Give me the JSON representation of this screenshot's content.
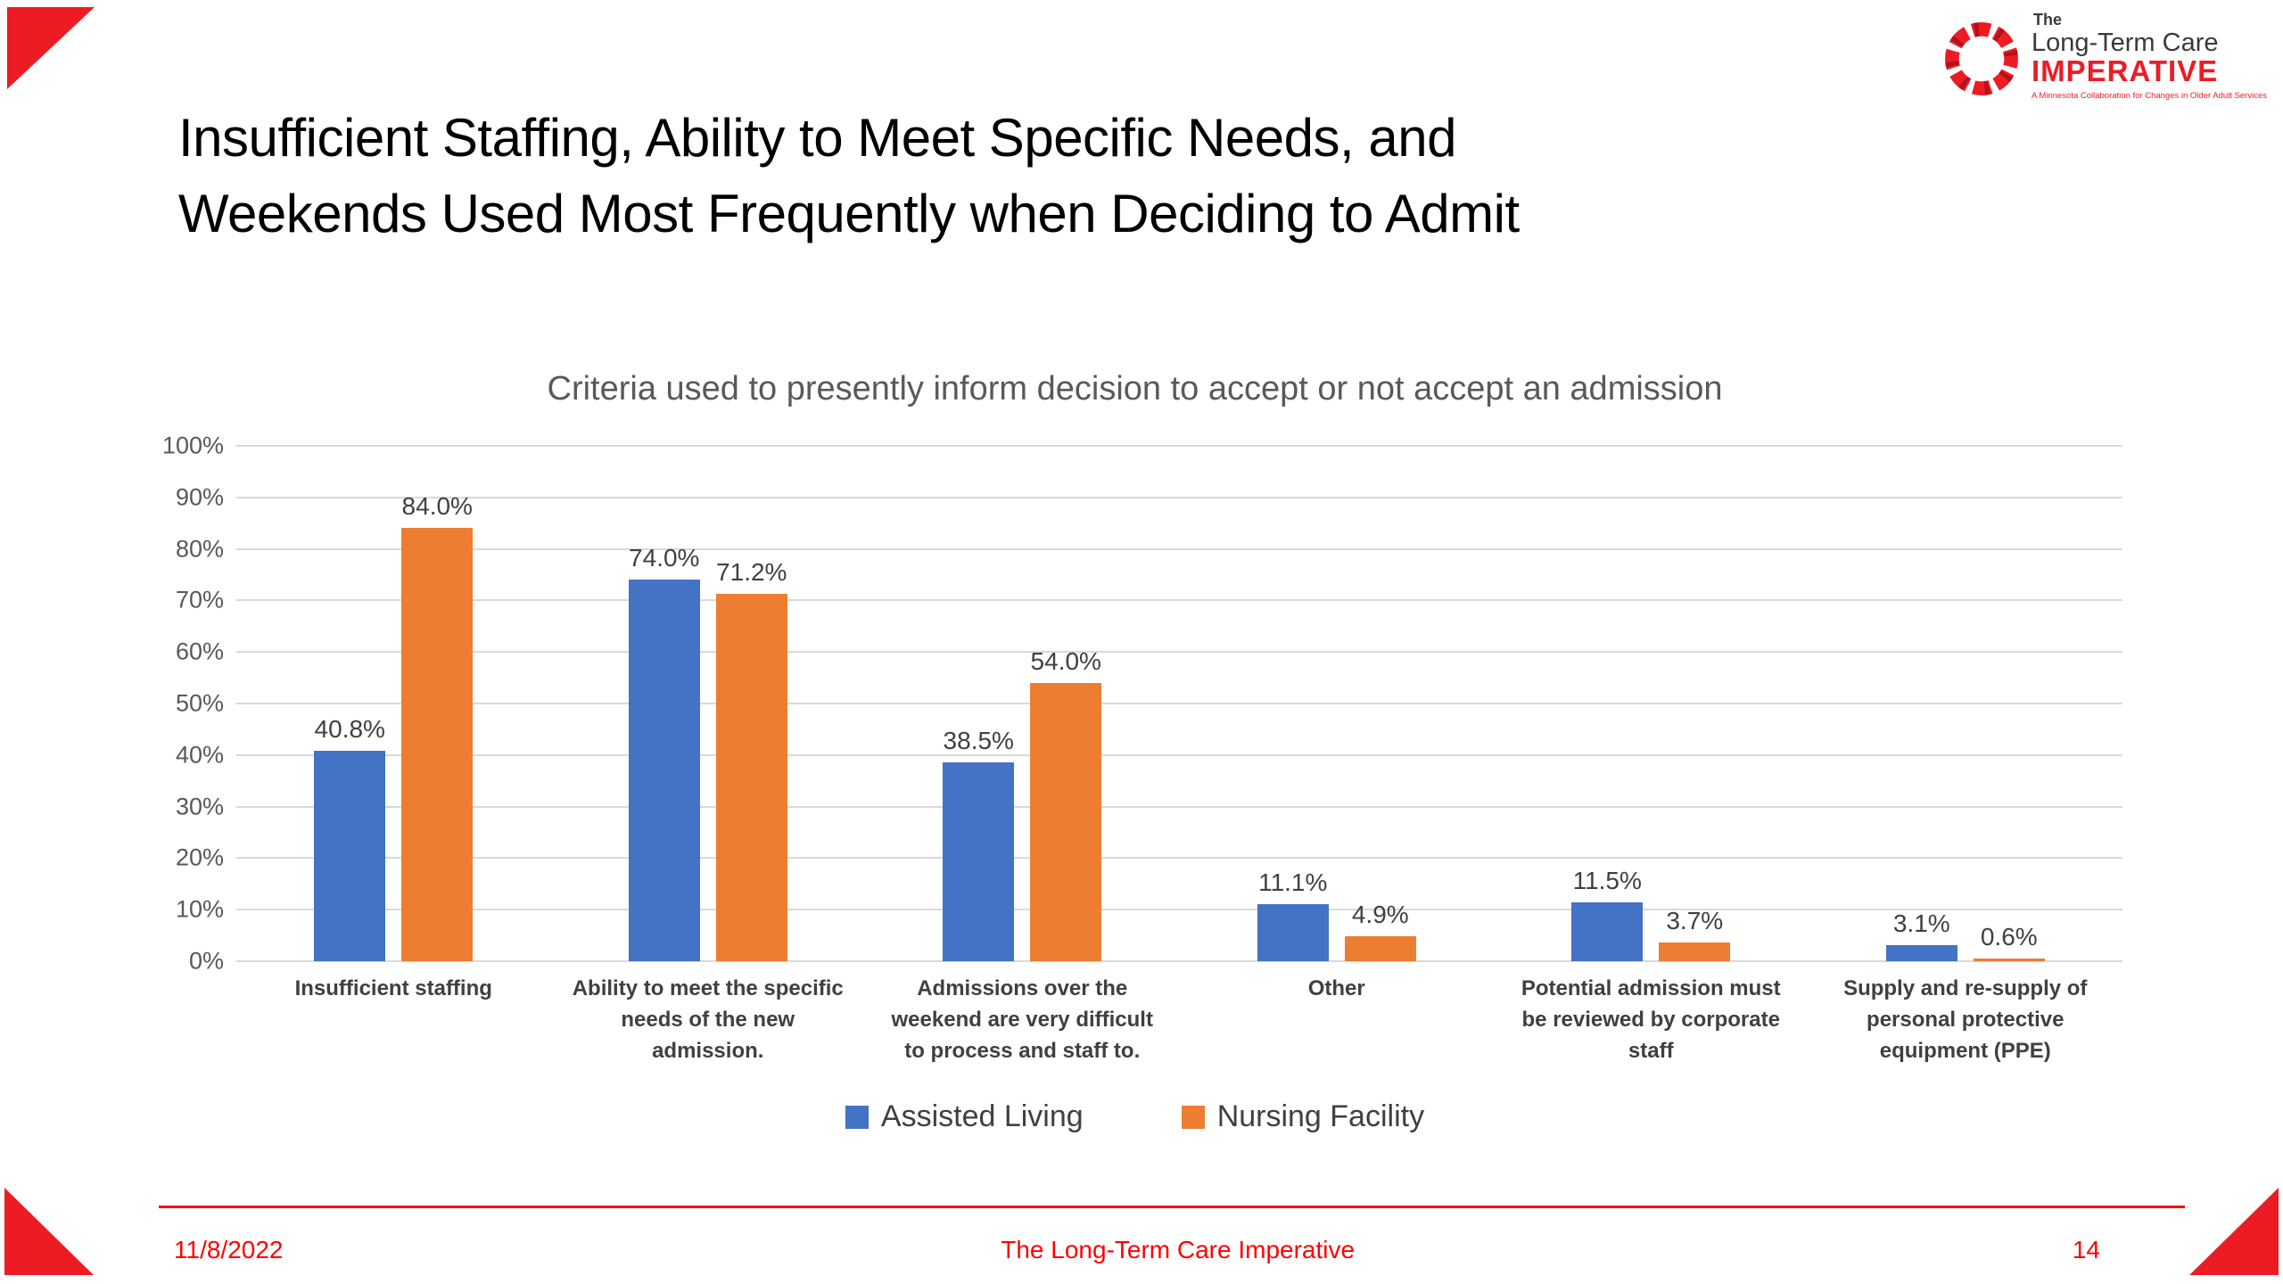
{
  "slide": {
    "title_lines": [
      "Insufficient Staffing, Ability to Meet Specific Needs, and",
      "Weekends Used Most Frequently when Deciding to Admit"
    ],
    "footer_date": "11/8/2022",
    "footer_center": "The Long-Term Care Imperative",
    "page_number": "14"
  },
  "logo": {
    "the": "The",
    "line1": "Long-Term Care",
    "line2": "IMPERATIVE",
    "tagline": "A Minnesota Collaboration for Changes in Older Adult Services"
  },
  "chart_data": {
    "type": "bar",
    "title": "Criteria used to presently inform decision to accept or not accept an admission",
    "categories": [
      "Insufficient staffing",
      "Ability to meet the specific needs of the new admission.",
      "Admissions over the weekend are very difficult to process and staff to.",
      "Other",
      "Potential admission must be reviewed by corporate staff",
      "Supply and re-supply of personal protective equipment (PPE)"
    ],
    "series": [
      {
        "name": "Assisted Living",
        "color": "#4472C4",
        "values": [
          40.8,
          74.0,
          38.5,
          11.1,
          11.5,
          3.1
        ]
      },
      {
        "name": "Nursing Facility",
        "color": "#ED7D31",
        "values": [
          84.0,
          71.2,
          54.0,
          4.9,
          3.7,
          0.6
        ]
      }
    ],
    "y_axis": {
      "min": 0,
      "max": 100,
      "step": 10,
      "tick_suffix": "%"
    },
    "data_label_decimals": 1,
    "data_label_suffix": "%",
    "legend_position": "bottom",
    "grid": true
  },
  "colors": {
    "accent_red": "#ED1C24",
    "footer_red": "#FF0000",
    "gridline": "#D9D9D9",
    "chart_title": "#595959",
    "label_text": "#404040"
  }
}
